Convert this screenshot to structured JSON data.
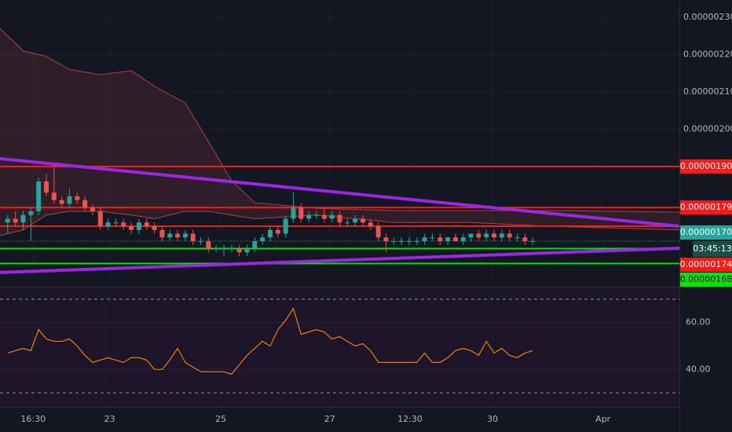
{
  "chart_data": [
    {
      "type": "candlestick",
      "xlim": [
        -1,
        87
      ],
      "ylim": [
        1.5779e-06,
        2.3463e-06
      ],
      "yticks": [
        {
          "value": 2.3e-06,
          "label": "0.00000230"
        },
        {
          "value": 2.2e-06,
          "label": "0.00000220"
        },
        {
          "value": 2.1e-06,
          "label": "0.00000210"
        },
        {
          "value": 2e-06,
          "label": "0.00000200"
        }
      ],
      "up_color": "#26a69a",
      "down_color": "#ef5350",
      "open": [
        1.75e-06,
        1.76e-06,
        1.75e-06,
        1.77e-06,
        1.78e-06,
        1.86e-06,
        1.83e-06,
        1.81e-06,
        1.8e-06,
        1.82e-06,
        1.81e-06,
        1.79e-06,
        1.78e-06,
        1.74e-06,
        1.75e-06,
        1.75e-06,
        1.74e-06,
        1.73e-06,
        1.75e-06,
        1.74e-06,
        1.73e-06,
        1.71e-06,
        1.72e-06,
        1.71e-06,
        1.72e-06,
        1.7e-06,
        1.7e-06,
        1.68e-06,
        1.68e-06,
        1.68e-06,
        1.68e-06,
        1.67e-06,
        1.68e-06,
        1.7e-06,
        1.71e-06,
        1.73e-06,
        1.72e-06,
        1.76e-06,
        1.79e-06,
        1.76e-06,
        1.77e-06,
        1.77e-06,
        1.76e-06,
        1.77e-06,
        1.75e-06,
        1.75e-06,
        1.76e-06,
        1.75e-06,
        1.74e-06,
        1.71e-06,
        1.7e-06,
        1.7e-06,
        1.7e-06,
        1.7e-06,
        1.7e-06,
        1.71e-06,
        1.71e-06,
        1.7e-06,
        1.71e-06,
        1.7e-06,
        1.71e-06,
        1.72e-06,
        1.71e-06,
        1.72e-06,
        1.71e-06,
        1.72e-06,
        1.71e-06,
        1.71e-06,
        1.7e-06
      ],
      "high": [
        1.77e-06,
        1.78e-06,
        1.78e-06,
        1.79e-06,
        1.87e-06,
        1.88e-06,
        1.91e-06,
        1.82e-06,
        1.84e-06,
        1.83e-06,
        1.82e-06,
        1.8e-06,
        1.79e-06,
        1.76e-06,
        1.76e-06,
        1.76e-06,
        1.75e-06,
        1.76e-06,
        1.76e-06,
        1.75e-06,
        1.74e-06,
        1.73e-06,
        1.73e-06,
        1.73e-06,
        1.73e-06,
        1.71e-06,
        1.71e-06,
        1.69e-06,
        1.69e-06,
        1.69e-06,
        1.69e-06,
        1.69e-06,
        1.71e-06,
        1.72e-06,
        1.74e-06,
        1.74e-06,
        1.77e-06,
        1.83e-06,
        1.8e-06,
        1.78e-06,
        1.78e-06,
        1.79e-06,
        1.78e-06,
        1.78e-06,
        1.76e-06,
        1.77e-06,
        1.77e-06,
        1.76e-06,
        1.75e-06,
        1.72e-06,
        1.71e-06,
        1.71e-06,
        1.71e-06,
        1.71e-06,
        1.72e-06,
        1.72e-06,
        1.72e-06,
        1.71e-06,
        1.72e-06,
        1.72e-06,
        1.72e-06,
        1.73e-06,
        1.73e-06,
        1.73e-06,
        1.73e-06,
        1.73e-06,
        1.72e-06,
        1.72e-06,
        1.71e-06
      ],
      "low": [
        1.72e-06,
        1.74e-06,
        1.73e-06,
        1.7e-06,
        1.77e-06,
        1.82e-06,
        1.8e-06,
        1.79e-06,
        1.79e-06,
        1.8e-06,
        1.78e-06,
        1.77e-06,
        1.73e-06,
        1.73e-06,
        1.74e-06,
        1.73e-06,
        1.72e-06,
        1.72e-06,
        1.73e-06,
        1.72e-06,
        1.7e-06,
        1.7e-06,
        1.7e-06,
        1.7e-06,
        1.69e-06,
        1.69e-06,
        1.67e-06,
        1.67e-06,
        1.66e-06,
        1.67e-06,
        1.66e-06,
        1.66e-06,
        1.67e-06,
        1.69e-06,
        1.7e-06,
        1.71e-06,
        1.71e-06,
        1.75e-06,
        1.75e-06,
        1.75e-06,
        1.76e-06,
        1.75e-06,
        1.75e-06,
        1.74e-06,
        1.74e-06,
        1.74e-06,
        1.74e-06,
        1.73e-06,
        1.7e-06,
        1.67e-06,
        1.69e-06,
        1.69e-06,
        1.69e-06,
        1.69e-06,
        1.69e-06,
        1.7e-06,
        1.69e-06,
        1.69e-06,
        1.7e-06,
        1.69e-06,
        1.7e-06,
        1.7e-06,
        1.7e-06,
        1.7e-06,
        1.7e-06,
        1.7e-06,
        1.7e-06,
        1.69e-06,
        1.69e-06
      ],
      "close": [
        1.76e-06,
        1.75e-06,
        1.77e-06,
        1.78e-06,
        1.86e-06,
        1.83e-06,
        1.81e-06,
        1.8e-06,
        1.82e-06,
        1.81e-06,
        1.79e-06,
        1.78e-06,
        1.74e-06,
        1.75e-06,
        1.75e-06,
        1.74e-06,
        1.73e-06,
        1.75e-06,
        1.74e-06,
        1.73e-06,
        1.71e-06,
        1.72e-06,
        1.71e-06,
        1.72e-06,
        1.7e-06,
        1.7e-06,
        1.68e-06,
        1.68e-06,
        1.68e-06,
        1.68e-06,
        1.67e-06,
        1.68e-06,
        1.7e-06,
        1.71e-06,
        1.73e-06,
        1.72e-06,
        1.76e-06,
        1.79e-06,
        1.76e-06,
        1.77e-06,
        1.77e-06,
        1.76e-06,
        1.77e-06,
        1.75e-06,
        1.75e-06,
        1.76e-06,
        1.75e-06,
        1.74e-06,
        1.71e-06,
        1.7e-06,
        1.7e-06,
        1.7e-06,
        1.7e-06,
        1.7e-06,
        1.71e-06,
        1.71e-06,
        1.7e-06,
        1.71e-06,
        1.7e-06,
        1.71e-06,
        1.72e-06,
        1.71e-06,
        1.72e-06,
        1.71e-06,
        1.72e-06,
        1.71e-06,
        1.71e-06,
        1.7e-06,
        1.7e-06
      ],
      "cloud": {
        "color": "#ef5350",
        "x": [
          -1,
          2,
          5,
          8,
          12,
          16,
          19,
          23,
          26,
          29,
          32,
          40,
          50,
          60,
          70,
          87
        ],
        "upper": [
          2.27e-06,
          2.21e-06,
          2.195e-06,
          2.16e-06,
          2.146e-06,
          2.157e-06,
          2.115e-06,
          2.07e-06,
          1.967e-06,
          1.862e-06,
          1.803e-06,
          1.788e-06,
          1.782e-06,
          1.782e-06,
          1.782e-06,
          1.778e-06
        ],
        "lower": [
          1.715e-06,
          1.73e-06,
          1.77e-06,
          1.78e-06,
          1.78e-06,
          1.77e-06,
          1.76e-06,
          1.78e-06,
          1.78e-06,
          1.77e-06,
          1.76e-06,
          1.77e-06,
          1.75e-06,
          1.75e-06,
          1.74e-06,
          1.73e-06
        ]
      },
      "trend_lines": [
        {
          "color": "#9c27e0",
          "x": [
            -1,
            87
          ],
          "values": [
            1.921e-06,
            1.74e-06
          ]
        },
        {
          "color": "#9c27e0",
          "x": [
            -1,
            87
          ],
          "values": [
            1.616e-06,
            1.681e-06
          ]
        }
      ],
      "horizontal_lines": [
        {
          "value": 1.9e-06,
          "label": "0.00000190",
          "color": "#ff1a1a"
        },
        {
          "value": 1.79e-06,
          "label": "0.00000179",
          "color": "#ff1a1a"
        },
        {
          "value": 1.74e-06,
          "label": "0.00000174",
          "color": "#ff1a1a"
        },
        {
          "value": 1.68e-06,
          "label": "0.00000168",
          "color": "#00e600"
        },
        {
          "value": 1.64e-06,
          "color": "#00e600"
        }
      ],
      "last_price": {
        "value": 1.7e-06,
        "label": "0.00000170",
        "countdown": "03:45:13",
        "color": "#26a69a"
      }
    },
    {
      "type": "line",
      "color": "#f57c00",
      "ylim": [
        24,
        75
      ],
      "yticks": [
        {
          "value": 60,
          "label": "60.00"
        },
        {
          "value": 40,
          "label": "40.00"
        }
      ],
      "bands": [
        70,
        30
      ],
      "xticks": [
        {
          "value": 3.3,
          "label": "16:30"
        },
        {
          "value": 13.2,
          "label": "23"
        },
        {
          "value": 27.6,
          "label": "25"
        },
        {
          "value": 41.7,
          "label": "27"
        },
        {
          "value": 52.1,
          "label": "12:30"
        },
        {
          "value": 62.8,
          "label": "30"
        },
        {
          "value": 77.1,
          "label": "Apr"
        }
      ],
      "values": [
        47,
        48,
        49,
        48,
        57,
        53,
        52,
        52,
        53,
        50,
        46,
        43,
        44,
        45,
        44,
        43,
        45,
        45,
        44,
        40,
        40,
        44,
        49,
        43,
        41,
        39,
        39,
        39,
        39,
        38,
        42,
        46,
        49,
        52,
        50,
        57,
        61,
        66,
        55,
        56,
        57,
        56,
        53,
        54,
        52,
        50,
        51,
        48,
        43,
        43,
        43,
        43,
        43,
        43,
        47,
        43,
        43,
        45,
        48,
        49,
        48,
        46,
        52,
        47,
        49,
        46,
        45,
        47,
        48
      ]
    }
  ]
}
